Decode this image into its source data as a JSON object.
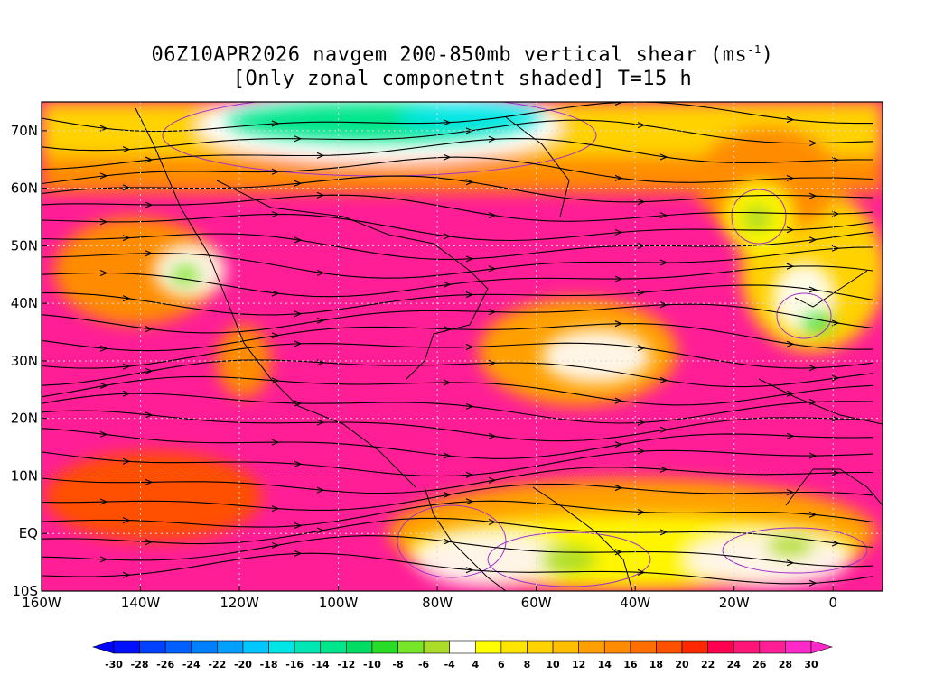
{
  "title": {
    "line1_main": "06Z10APR2026 navgem 200-850mb vertical shear (ms",
    "line1_sup": "-1",
    "line1_end": ")",
    "line2": "[Only zonal componetnt shaded] T=15 h"
  },
  "map": {
    "lon_range": [
      -160,
      10
    ],
    "lat_range": [
      -10,
      75
    ],
    "lat_labels": [
      {
        "lat": 70,
        "text": "70N"
      },
      {
        "lat": 60,
        "text": "60N"
      },
      {
        "lat": 50,
        "text": "50N"
      },
      {
        "lat": 40,
        "text": "40N"
      },
      {
        "lat": 30,
        "text": "30N"
      },
      {
        "lat": 20,
        "text": "20N"
      },
      {
        "lat": 10,
        "text": "10N"
      },
      {
        "lat": 0,
        "text": "EQ"
      },
      {
        "lat": -10,
        "text": "10S"
      }
    ],
    "lon_labels": [
      {
        "lon": -160,
        "text": "160W"
      },
      {
        "lon": -140,
        "text": "140W"
      },
      {
        "lon": -120,
        "text": "120W"
      },
      {
        "lon": -100,
        "text": "100W"
      },
      {
        "lon": -80,
        "text": "80W"
      },
      {
        "lon": -60,
        "text": "60W"
      },
      {
        "lon": -40,
        "text": "40W"
      },
      {
        "lon": -20,
        "text": "20W"
      },
      {
        "lon": 0,
        "text": "0"
      }
    ],
    "grid": "dotted"
  },
  "colorbar": {
    "labels": [
      "-30",
      "-28",
      "-26",
      "-24",
      "-22",
      "-20",
      "-18",
      "-16",
      "-14",
      "-12",
      "-10",
      "-8",
      "-6",
      "-4",
      "4",
      "6",
      "8",
      "10",
      "12",
      "14",
      "16",
      "18",
      "20",
      "22",
      "24",
      "26",
      "28",
      "30"
    ],
    "colors": [
      "#0010ff",
      "#0040ff",
      "#0060ff",
      "#0080ff",
      "#00a0ff",
      "#00c8ff",
      "#00e6e6",
      "#00e6b4",
      "#00e68c",
      "#00dc64",
      "#28dc28",
      "#78e628",
      "#aadc28",
      "#ffffff",
      "#ffff00",
      "#ffe600",
      "#ffd200",
      "#ffbe00",
      "#ffa000",
      "#ff8c00",
      "#ff6e00",
      "#ff5000",
      "#ff2800",
      "#ff0050",
      "#ff1478",
      "#ff1e96",
      "#ff28c8"
    ],
    "arrow_low_color": "#0000ff",
    "arrow_high_color": "#ff28c8"
  }
}
